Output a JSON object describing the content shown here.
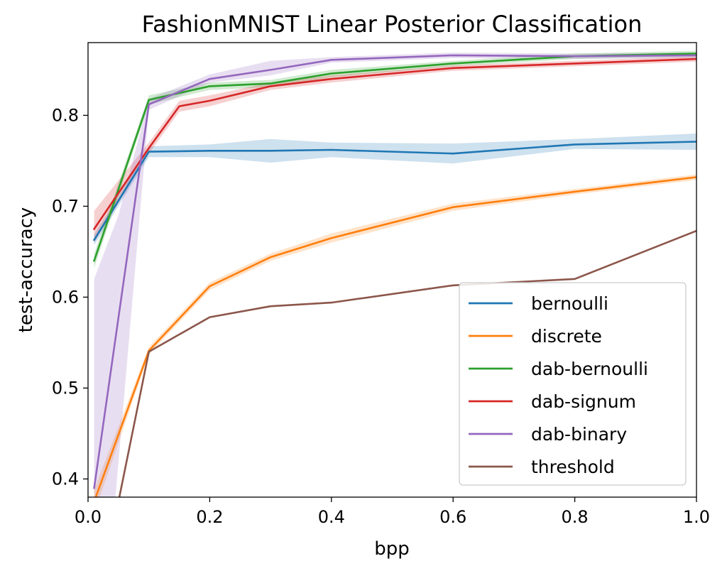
{
  "chart_data": {
    "type": "line",
    "title": "FashionMNIST Linear Posterior Classification",
    "xlabel": "bpp",
    "ylabel": "test-accuracy",
    "xlim": [
      0.0,
      1.0
    ],
    "ylim": [
      0.38,
      0.88
    ],
    "xticks": [
      0.0,
      0.2,
      0.4,
      0.6,
      0.8,
      1.0
    ],
    "xtick_labels": [
      "0.0",
      "0.2",
      "0.4",
      "0.6",
      "0.8",
      "1.0"
    ],
    "yticks": [
      0.4,
      0.5,
      0.6,
      0.7,
      0.8
    ],
    "ytick_labels": [
      "0.4",
      "0.5",
      "0.6",
      "0.7",
      "0.8"
    ],
    "grid": false,
    "legend_position": "lower-right",
    "series": [
      {
        "name": "bernoulli",
        "color": "#1f77b4",
        "x": [
          0.01,
          0.1,
          0.2,
          0.3,
          0.4,
          0.6,
          0.8,
          1.0
        ],
        "y": [
          0.663,
          0.76,
          0.761,
          0.761,
          0.762,
          0.758,
          0.768,
          0.771
        ],
        "lower": [
          0.657,
          0.754,
          0.754,
          0.748,
          0.754,
          0.747,
          0.763,
          0.762
        ],
        "upper": [
          0.669,
          0.766,
          0.768,
          0.774,
          0.77,
          0.769,
          0.774,
          0.78
        ]
      },
      {
        "name": "discrete",
        "color": "#ff7f0e",
        "x": [
          0.01,
          0.1,
          0.2,
          0.3,
          0.4,
          0.6,
          0.8,
          1.0
        ],
        "y": [
          0.375,
          0.541,
          0.612,
          0.644,
          0.665,
          0.699,
          0.716,
          0.732
        ],
        "lower": [
          0.362,
          0.537,
          0.608,
          0.64,
          0.66,
          0.695,
          0.713,
          0.729
        ],
        "upper": [
          0.388,
          0.545,
          0.616,
          0.648,
          0.67,
          0.703,
          0.719,
          0.735
        ]
      },
      {
        "name": "dab-bernoulli",
        "color": "#2ca02c",
        "x": [
          0.01,
          0.1,
          0.2,
          0.3,
          0.4,
          0.6,
          0.8,
          1.0
        ],
        "y": [
          0.64,
          0.817,
          0.832,
          0.835,
          0.846,
          0.857,
          0.865,
          0.868
        ],
        "lower": [
          0.632,
          0.812,
          0.828,
          0.831,
          0.842,
          0.854,
          0.862,
          0.865
        ],
        "upper": [
          0.648,
          0.822,
          0.836,
          0.839,
          0.85,
          0.86,
          0.868,
          0.871
        ]
      },
      {
        "name": "dab-signum",
        "color": "#d62728",
        "x": [
          0.01,
          0.1,
          0.15,
          0.2,
          0.3,
          0.4,
          0.6,
          0.8,
          1.0
        ],
        "y": [
          0.675,
          0.764,
          0.81,
          0.816,
          0.832,
          0.84,
          0.852,
          0.857,
          0.862
        ],
        "lower": [
          0.66,
          0.758,
          0.804,
          0.81,
          0.828,
          0.836,
          0.849,
          0.854,
          0.859
        ],
        "upper": [
          0.695,
          0.77,
          0.816,
          0.822,
          0.836,
          0.844,
          0.855,
          0.86,
          0.865
        ]
      },
      {
        "name": "dab-binary",
        "color": "#9467bd",
        "x": [
          0.01,
          0.1,
          0.2,
          0.3,
          0.4,
          0.6,
          0.8,
          1.0
        ],
        "y": [
          0.39,
          0.812,
          0.84,
          0.85,
          0.861,
          0.866,
          0.865,
          0.866
        ],
        "lower": [
          0.38,
          0.806,
          0.836,
          0.844,
          0.858,
          0.863,
          0.862,
          0.863
        ],
        "upper": [
          0.4,
          0.818,
          0.845,
          0.86,
          0.864,
          0.869,
          0.868,
          0.869
        ],
        "band_polygon": [
          [
            0.01,
            0.62
          ],
          [
            0.05,
            0.69
          ],
          [
            0.1,
            0.818
          ],
          [
            0.2,
            0.845
          ],
          [
            0.3,
            0.86
          ],
          [
            0.4,
            0.864
          ],
          [
            0.6,
            0.869
          ],
          [
            0.8,
            0.868
          ],
          [
            1.0,
            0.869
          ],
          [
            1.0,
            0.863
          ],
          [
            0.8,
            0.862
          ],
          [
            0.6,
            0.863
          ],
          [
            0.4,
            0.858
          ],
          [
            0.3,
            0.844
          ],
          [
            0.2,
            0.836
          ],
          [
            0.1,
            0.806
          ],
          [
            0.045,
            0.38
          ],
          [
            0.01,
            0.38
          ]
        ]
      },
      {
        "name": "threshold",
        "color": "#8c564b",
        "x": [
          0.05,
          0.1,
          0.2,
          0.3,
          0.4,
          0.6,
          0.8,
          1.0
        ],
        "y": [
          0.375,
          0.54,
          0.578,
          0.59,
          0.594,
          0.613,
          0.62,
          0.673
        ],
        "lower": null,
        "upper": null
      }
    ]
  }
}
